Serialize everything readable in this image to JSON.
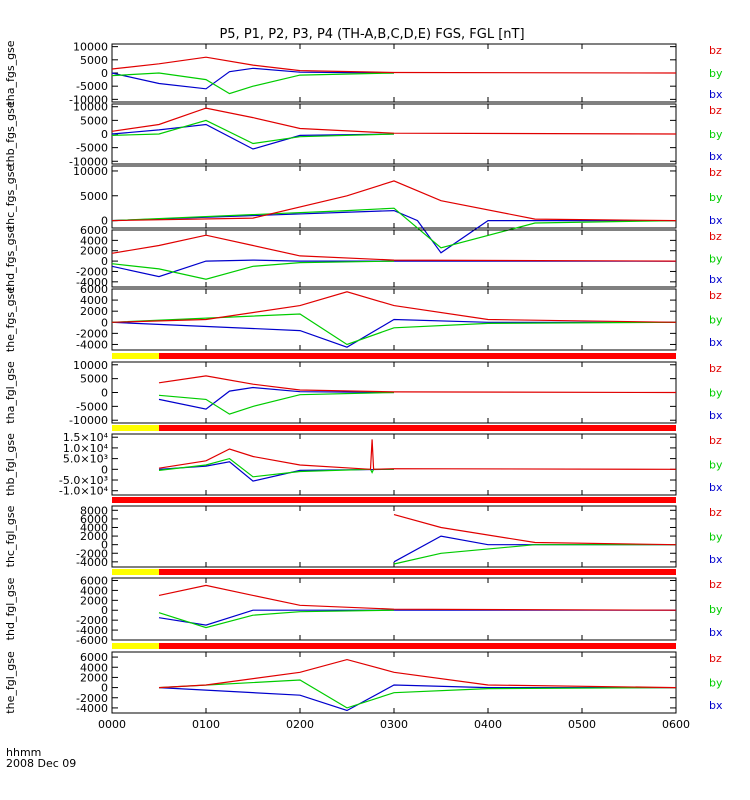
{
  "title": "P5, P1, P2, P3, P4 (TH-A,B,C,D,E) FGS, FGL [nT]",
  "footer": {
    "line1": "hhmm",
    "line2": "2008 Dec 09"
  },
  "colors": {
    "bz": "#e00000",
    "by": "#00cc00",
    "bx": "#0000cc",
    "bar_yellow": "#ffff00",
    "bar_red": "#ff0000",
    "bar_black": "#000000",
    "frame": "#000000"
  },
  "chart_data": {
    "type": "line",
    "x_axis": {
      "unit": "hhmm",
      "range": [
        "0000",
        "0600"
      ],
      "ticks": [
        "0000",
        "0100",
        "0200",
        "0300",
        "0400",
        "0500",
        "0600"
      ]
    },
    "legend": [
      "bz",
      "by",
      "bx"
    ],
    "panels": [
      {
        "ylabel": "tha_fgs_gse",
        "ticks": [
          "10000",
          "5000",
          "0",
          "-5000",
          "-10000"
        ],
        "series": [
          {
            "name": "bz",
            "points": [
              [
                "0000",
                1500
              ],
              [
                "0030",
                3500
              ],
              [
                "0100",
                6000
              ],
              [
                "0130",
                3000
              ],
              [
                "0200",
                900
              ],
              [
                "0300",
                200
              ],
              [
                "0600",
                0
              ]
            ]
          },
          {
            "name": "by",
            "points": [
              [
                "0000",
                -1000
              ],
              [
                "0030",
                0
              ],
              [
                "0100",
                -2500
              ],
              [
                "0115",
                -7800
              ],
              [
                "0130",
                -5000
              ],
              [
                "0200",
                -800
              ],
              [
                "0300",
                0
              ]
            ]
          },
          {
            "name": "bx",
            "points": [
              [
                "0000",
                0
              ],
              [
                "0030",
                -4000
              ],
              [
                "0100",
                -6000
              ],
              [
                "0115",
                500
              ],
              [
                "0130",
                1800
              ],
              [
                "0200",
                300
              ],
              [
                "0300",
                0
              ]
            ]
          }
        ]
      },
      {
        "ylabel": "thb_fgs_gse",
        "ticks": [
          "10000",
          "5000",
          "0",
          "-5000",
          "-10000"
        ],
        "series": [
          {
            "name": "bz",
            "points": [
              [
                "0000",
                1000
              ],
              [
                "0030",
                3500
              ],
              [
                "0100",
                9500
              ],
              [
                "0130",
                6000
              ],
              [
                "0200",
                2000
              ],
              [
                "0300",
                300
              ],
              [
                "0600",
                0
              ]
            ]
          },
          {
            "name": "by",
            "points": [
              [
                "0000",
                -500
              ],
              [
                "0030",
                0
              ],
              [
                "0100",
                5000
              ],
              [
                "0130",
                -3500
              ],
              [
                "0200",
                -1000
              ],
              [
                "0300",
                0
              ]
            ]
          },
          {
            "name": "bx",
            "points": [
              [
                "0000",
                0
              ],
              [
                "0030",
                1500
              ],
              [
                "0100",
                3500
              ],
              [
                "0130",
                -5500
              ],
              [
                "0200",
                -500
              ],
              [
                "0300",
                0
              ]
            ]
          }
        ]
      },
      {
        "ylabel": "thc_fgs_gse",
        "ticks": [
          "10000",
          "5000",
          "0"
        ],
        "series": [
          {
            "name": "bz",
            "points": [
              [
                "0000",
                0
              ],
              [
                "0130",
                500
              ],
              [
                "0230",
                5000
              ],
              [
                "0300",
                8000
              ],
              [
                "0330",
                4000
              ],
              [
                "0430",
                300
              ],
              [
                "0600",
                0
              ]
            ]
          },
          {
            "name": "by",
            "points": [
              [
                "0000",
                0
              ],
              [
                "0230",
                2000
              ],
              [
                "0300",
                2500
              ],
              [
                "0330",
                -5500
              ],
              [
                "0430",
                -500
              ],
              [
                "0600",
                0
              ]
            ]
          },
          {
            "name": "bx",
            "points": [
              [
                "0000",
                0
              ],
              [
                "0300",
                2000
              ],
              [
                "0315",
                0
              ],
              [
                "0330",
                -6500
              ],
              [
                "0400",
                0
              ],
              [
                "0600",
                0
              ]
            ]
          }
        ]
      },
      {
        "ylabel": "thd_fgs_gse",
        "ticks": [
          "6000",
          "4000",
          "2000",
          "0",
          "-2000",
          "-4000"
        ],
        "series": [
          {
            "name": "bz",
            "points": [
              [
                "0000",
                1500
              ],
              [
                "0030",
                3000
              ],
              [
                "0100",
                5000
              ],
              [
                "0130",
                3000
              ],
              [
                "0200",
                1000
              ],
              [
                "0300",
                200
              ],
              [
                "0600",
                0
              ]
            ]
          },
          {
            "name": "by",
            "points": [
              [
                "0000",
                -500
              ],
              [
                "0030",
                -1500
              ],
              [
                "0100",
                -3500
              ],
              [
                "0130",
                -1000
              ],
              [
                "0200",
                -300
              ],
              [
                "0300",
                0
              ]
            ]
          },
          {
            "name": "bx",
            "points": [
              [
                "0000",
                -1000
              ],
              [
                "0030",
                -3000
              ],
              [
                "0100",
                0
              ],
              [
                "0130",
                200
              ],
              [
                "0200",
                0
              ],
              [
                "0600",
                0
              ]
            ]
          }
        ]
      },
      {
        "ylabel": "the_fgs_gse",
        "ticks": [
          "6000",
          "4000",
          "2000",
          "0",
          "-2000",
          "-4000"
        ],
        "series": [
          {
            "name": "bz",
            "points": [
              [
                "0000",
                0
              ],
              [
                "0100",
                500
              ],
              [
                "0200",
                3000
              ],
              [
                "0230",
                5500
              ],
              [
                "0300",
                3000
              ],
              [
                "0400",
                500
              ],
              [
                "0600",
                0
              ]
            ]
          },
          {
            "name": "by",
            "points": [
              [
                "0000",
                0
              ],
              [
                "0200",
                1500
              ],
              [
                "0230",
                -4000
              ],
              [
                "0300",
                -1000
              ],
              [
                "0400",
                -200
              ],
              [
                "0600",
                0
              ]
            ]
          },
          {
            "name": "bx",
            "points": [
              [
                "0000",
                0
              ],
              [
                "0200",
                -1500
              ],
              [
                "0230",
                -4500
              ],
              [
                "0300",
                500
              ],
              [
                "0400",
                0
              ],
              [
                "0600",
                0
              ]
            ]
          }
        ]
      },
      {
        "ylabel": "tha_fgl_gse",
        "ticks": [
          "10000",
          "5000",
          "0",
          "-5000",
          "-10000"
        ],
        "series": [
          {
            "name": "bz",
            "points": [
              [
                "0030",
                3500
              ],
              [
                "0100",
                6000
              ],
              [
                "0130",
                3000
              ],
              [
                "0200",
                900
              ],
              [
                "0300",
                200
              ],
              [
                "0600",
                0
              ]
            ]
          },
          {
            "name": "by",
            "points": [
              [
                "0030",
                -1000
              ],
              [
                "0100",
                -2500
              ],
              [
                "0115",
                -7800
              ],
              [
                "0130",
                -5000
              ],
              [
                "0200",
                -800
              ],
              [
                "0300",
                0
              ]
            ]
          },
          {
            "name": "bx",
            "points": [
              [
                "0030",
                -2500
              ],
              [
                "0100",
                -6000
              ],
              [
                "0115",
                500
              ],
              [
                "0130",
                1800
              ],
              [
                "0200",
                300
              ],
              [
                "0300",
                0
              ]
            ]
          }
        ]
      },
      {
        "ylabel": "thb_fgl_gse",
        "ticks": [
          "1.5×10⁴",
          "1.0×10⁴",
          "5.0×10³",
          "0",
          "-5.0×10³",
          "-1.0×10⁴"
        ],
        "series": [
          {
            "name": "bz",
            "points": [
              [
                "0030",
                500
              ],
              [
                "0100",
                4000
              ],
              [
                "0115",
                9500
              ],
              [
                "0130",
                6000
              ],
              [
                "0200",
                2000
              ],
              [
                "0245",
                0
              ],
              [
                "0246",
                14000
              ],
              [
                "0247",
                0
              ],
              [
                "0300",
                300
              ],
              [
                "0600",
                0
              ]
            ]
          },
          {
            "name": "by",
            "points": [
              [
                "0030",
                -500
              ],
              [
                "0100",
                2000
              ],
              [
                "0115",
                5000
              ],
              [
                "0130",
                -3500
              ],
              [
                "0200",
                -1000
              ],
              [
                "0245",
                0
              ],
              [
                "0246",
                -1500
              ],
              [
                "0247",
                0
              ],
              [
                "0300",
                0
              ]
            ]
          },
          {
            "name": "bx",
            "points": [
              [
                "0030",
                0
              ],
              [
                "0100",
                1500
              ],
              [
                "0115",
                3500
              ],
              [
                "0130",
                -5500
              ],
              [
                "0200",
                -500
              ],
              [
                "0300",
                0
              ]
            ]
          }
        ]
      },
      {
        "ylabel": "thc_fgl_gse",
        "ticks": [
          "8000",
          "6000",
          "4000",
          "2000",
          "0",
          "-2000",
          "-4000"
        ],
        "series": [
          {
            "name": "bz",
            "points": [
              [
                "0300",
                7000
              ],
              [
                "0330",
                4000
              ],
              [
                "0430",
                500
              ],
              [
                "0600",
                0
              ]
            ]
          },
          {
            "name": "by",
            "points": [
              [
                "0300",
                -4500
              ],
              [
                "0330",
                -2000
              ],
              [
                "0430",
                0
              ],
              [
                "0600",
                0
              ]
            ]
          },
          {
            "name": "bx",
            "points": [
              [
                "0300",
                -4000
              ],
              [
                "0330",
                2000
              ],
              [
                "0400",
                0
              ],
              [
                "0430",
                0
              ],
              [
                "0600",
                0
              ]
            ]
          }
        ]
      },
      {
        "ylabel": "thd_fgl_gse",
        "ticks": [
          "6000",
          "4000",
          "2000",
          "0",
          "-2000",
          "-4000",
          "-6000"
        ],
        "series": [
          {
            "name": "bz",
            "points": [
              [
                "0030",
                3000
              ],
              [
                "0100",
                5000
              ],
              [
                "0130",
                3000
              ],
              [
                "0200",
                1000
              ],
              [
                "0300",
                200
              ],
              [
                "0600",
                0
              ]
            ]
          },
          {
            "name": "by",
            "points": [
              [
                "0030",
                -500
              ],
              [
                "0100",
                -3500
              ],
              [
                "0130",
                -1000
              ],
              [
                "0200",
                -300
              ],
              [
                "0300",
                0
              ]
            ]
          },
          {
            "name": "bx",
            "points": [
              [
                "0030",
                -1500
              ],
              [
                "0100",
                -3000
              ],
              [
                "0130",
                0
              ],
              [
                "0200",
                0
              ],
              [
                "0600",
                0
              ]
            ]
          }
        ]
      },
      {
        "ylabel": "the_fgl_gse",
        "ticks": [
          "6000",
          "4000",
          "2000",
          "0",
          "-2000",
          "-4000"
        ],
        "series": [
          {
            "name": "bz",
            "points": [
              [
                "0030",
                0
              ],
              [
                "0100",
                500
              ],
              [
                "0200",
                3000
              ],
              [
                "0230",
                5500
              ],
              [
                "0300",
                3000
              ],
              [
                "0400",
                500
              ],
              [
                "0600",
                0
              ]
            ]
          },
          {
            "name": "by",
            "points": [
              [
                "0030",
                0
              ],
              [
                "0200",
                1500
              ],
              [
                "0230",
                -4000
              ],
              [
                "0300",
                -1000
              ],
              [
                "0400",
                -200
              ],
              [
                "0600",
                0
              ]
            ]
          },
          {
            "name": "bx",
            "points": [
              [
                "0030",
                0
              ],
              [
                "0200",
                -1500
              ],
              [
                "0230",
                -4500
              ],
              [
                "0300",
                500
              ],
              [
                "0400",
                0
              ],
              [
                "0600",
                0
              ]
            ]
          }
        ]
      }
    ]
  }
}
